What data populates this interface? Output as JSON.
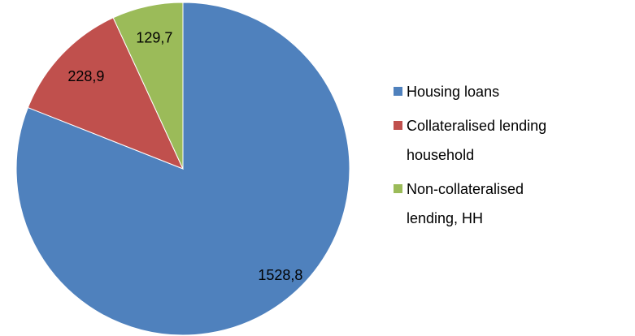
{
  "chart_data": {
    "type": "pie",
    "categories": [
      "Housing loans",
      "Collateralised lending household",
      "Non-collateralised lending, HH"
    ],
    "values": [
      1528.8,
      228.9,
      129.7
    ],
    "value_labels": [
      "1528,8",
      "228,9",
      "129,7"
    ],
    "colors": [
      "#4f81bd",
      "#c0504d",
      "#9bbb59"
    ],
    "legend": "right"
  }
}
